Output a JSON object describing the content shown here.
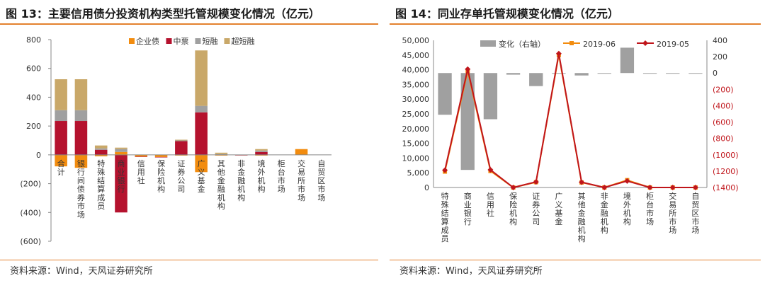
{
  "left": {
    "title": "图 13：主要信用债分投资机构类型托管规模变化情况（亿元）",
    "source": "资料来源：Wind，天风证券研究所"
  },
  "right": {
    "title": "图 14：同业存单托管规模变化情况（亿元）",
    "source": "资料来源：Wind，天风证券研究所"
  },
  "colors": {
    "orange": "#f28c0f",
    "maroon": "#b5122e",
    "gray": "#a0a0a0",
    "tan": "#c9a869",
    "red": "#c0151b",
    "accent": "#e3812e"
  },
  "chart_data": [
    {
      "type": "bar",
      "stacked": true,
      "categories": [
        "合计",
        "银行间债券市场",
        "特殊结算成员",
        "商业银行",
        "信用社",
        "保险机构",
        "证券公司",
        "广义基金",
        "其他金融机构",
        "非金融机构",
        "境外机构",
        "柜台市场",
        "交易所市场",
        "自贸区市场"
      ],
      "series": [
        {
          "name": "企业债",
          "values": [
            -80,
            -90,
            -10,
            20,
            -12,
            -15,
            -5,
            -120,
            -5,
            -2,
            -5,
            0,
            40,
            0
          ]
        },
        {
          "name": "中票",
          "values": [
            235,
            235,
            35,
            -400,
            -3,
            -3,
            95,
            295,
            0,
            -2,
            20,
            0,
            0,
            0
          ]
        },
        {
          "name": "短融",
          "values": [
            75,
            75,
            10,
            20,
            0,
            0,
            5,
            45,
            5,
            0,
            10,
            0,
            0,
            0
          ]
        },
        {
          "name": "超短融",
          "values": [
            215,
            215,
            20,
            10,
            0,
            0,
            5,
            385,
            10,
            0,
            10,
            0,
            0,
            0
          ]
        }
      ],
      "ylim": [
        -600,
        800
      ],
      "yticks": [
        "800",
        "600",
        "400",
        "200",
        "0",
        "(200)",
        "(400)",
        "(600)"
      ],
      "yticks_values": [
        800,
        600,
        400,
        200,
        0,
        -200,
        -400,
        -600
      ],
      "legend": "top-right"
    },
    {
      "type": "bar+line",
      "categories": [
        "特殊结算成员",
        "商业银行",
        "信用社",
        "保险机构",
        "证券公司",
        "广义基金",
        "其他金融机构",
        "非金融机构",
        "境外机构",
        "柜台市场",
        "交易所市场",
        "自贸区市场"
      ],
      "bar_series": {
        "name": "变化（右轴）",
        "values": [
          -510,
          -1185,
          -565,
          -20,
          -160,
          -8,
          -30,
          -8,
          310,
          0,
          0,
          0
        ]
      },
      "line_series": [
        {
          "name": "2019-06",
          "values": [
            5400,
            39500,
            5600,
            0,
            1800,
            45000,
            1700,
            0,
            2500,
            0,
            0,
            0
          ]
        },
        {
          "name": "2019-05",
          "values": [
            5900,
            40200,
            6000,
            0,
            1900,
            45500,
            1800,
            0,
            2200,
            0,
            0,
            0
          ]
        }
      ],
      "ylim_left": [
        0,
        50000
      ],
      "yticks_left": [
        "50,000",
        "45,000",
        "40,000",
        "35,000",
        "30,000",
        "25,000",
        "20,000",
        "15,000",
        "10,000",
        "5,000",
        "0"
      ],
      "yticks_left_values": [
        50000,
        45000,
        40000,
        35000,
        30000,
        25000,
        20000,
        15000,
        10000,
        5000,
        0
      ],
      "ylim_right": [
        -1400,
        400
      ],
      "yticks_right": [
        "400",
        "200",
        "0",
        "(200)",
        "(400)",
        "(600)",
        "(800)",
        "(1000)",
        "(1200)",
        "(1400)"
      ],
      "yticks_right_values": [
        400,
        200,
        0,
        -200,
        -400,
        -600,
        -800,
        -1000,
        -1200,
        -1400
      ],
      "legend": "top"
    }
  ]
}
